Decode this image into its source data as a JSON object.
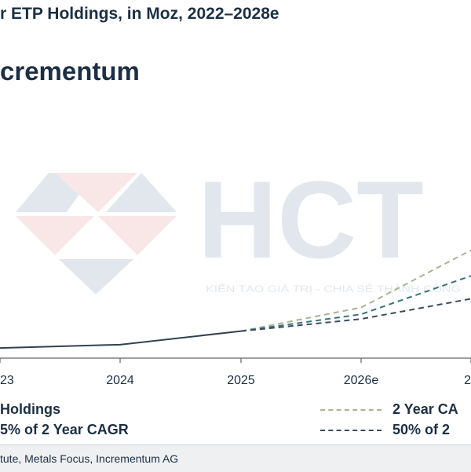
{
  "header": {
    "title": "r ETP Holdings, in Moz, 2022–2028e",
    "brand": "crementum"
  },
  "watermark": {
    "logo_text": "HCT",
    "tagline": "KIẾN TẠO GIÁ TRỊ - CHIA SẺ THÀNH CÔNG"
  },
  "chart_data": {
    "type": "line",
    "title": "r ETP Holdings, in Moz, 2022–2028e",
    "x": [
      "23",
      "2024",
      "2025",
      "2026e",
      "2"
    ],
    "xlabel": "",
    "ylabel": "",
    "grid": false,
    "legend_position": "bottom",
    "series": [
      {
        "name": "Holdings",
        "style": "solid",
        "color": "#34414e",
        "values": [
          295,
          300,
          320,
          null,
          null
        ]
      },
      {
        "name": "2 Year CA",
        "style": "dashed",
        "color": "#aab394",
        "values": [
          null,
          null,
          320,
          355,
          440
        ]
      },
      {
        "name": "5% of 2 Year CAGR",
        "style": "dashed",
        "color": "#3a7277",
        "values": [
          null,
          null,
          320,
          345,
          402
        ]
      },
      {
        "name": "50% of 2",
        "style": "dashed",
        "color": "#3b4d60",
        "values": [
          null,
          null,
          320,
          338,
          368
        ]
      }
    ]
  },
  "legend": {
    "left": [
      {
        "label": "Holdings"
      },
      {
        "label": "5% of 2 Year CAGR"
      }
    ],
    "right": [
      {
        "label": "2 Year CA",
        "color": "#aab394"
      },
      {
        "label": "50% of 2",
        "color": "#3b4d60"
      }
    ]
  },
  "footer": {
    "source": "tute, Metals Focus, Incrementum AG"
  }
}
